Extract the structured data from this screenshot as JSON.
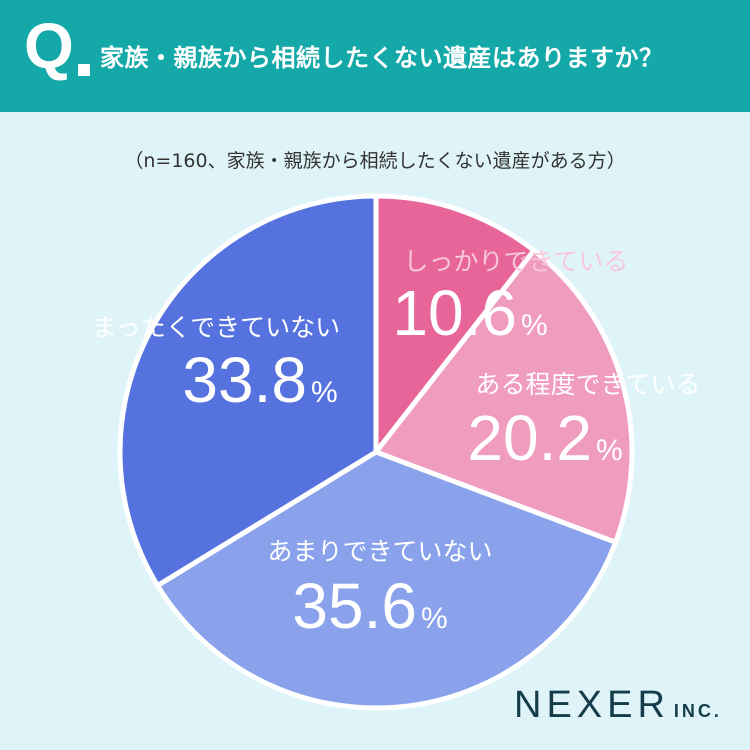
{
  "header": {
    "q_mark": "Q",
    "question": "家族・親族から相続したくない遺産はありますか？"
  },
  "subtitle": "（n=160、家族・親族から相続したくない遺産がある方）",
  "brand": {
    "name": "NEXER",
    "suffix": "INC."
  },
  "colors": {
    "header_bg": "#14a8a8",
    "page_bg": "#dff4f9",
    "brand": "#143c4a"
  },
  "chart_data": {
    "type": "pie",
    "start_angle_deg": 0,
    "direction": "clockwise",
    "slices": [
      {
        "label": "しっかりできている",
        "value": 10.6,
        "display": "10.6",
        "unit": "%",
        "color": "#e8659a",
        "label_color": "#f8c8dc"
      },
      {
        "label": "ある程度できている",
        "value": 20.2,
        "display": "20.2",
        "unit": "%",
        "color": "#f09cbf",
        "label_color": "#ffffff"
      },
      {
        "label": "あまりできていない",
        "value": 35.6,
        "display": "35.6",
        "unit": "%",
        "color": "#8aa1ec",
        "label_color": "#ffffff"
      },
      {
        "label": "まったくできていない",
        "value": 33.8,
        "display": "33.8",
        "unit": "%",
        "color": "#5572df",
        "label_color": "#ffffff"
      }
    ]
  }
}
